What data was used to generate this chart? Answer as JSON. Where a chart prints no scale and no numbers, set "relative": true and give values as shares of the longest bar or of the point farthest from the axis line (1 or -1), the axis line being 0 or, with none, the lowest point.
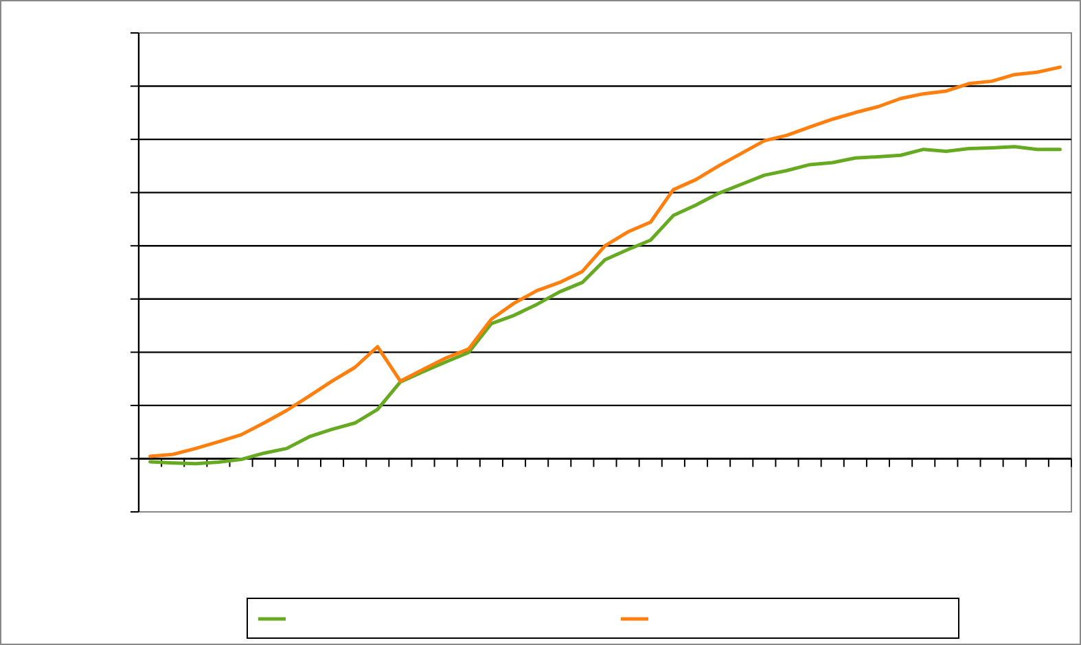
{
  "chart_data": {
    "type": "line",
    "relative": true,
    "grid": "y",
    "marker": "none",
    "categories": [
      null,
      null,
      null,
      null,
      null,
      null,
      null,
      null,
      null,
      null,
      null,
      null,
      null,
      null,
      null,
      null,
      null,
      null,
      null,
      null,
      null,
      null,
      null,
      null,
      null,
      null,
      null,
      null,
      null,
      null,
      null,
      null,
      null,
      null,
      null,
      null,
      null,
      null,
      null,
      null,
      null
    ],
    "series": [
      {
        "color": "#66aa22",
        "values": [
          -0.008,
          -0.011,
          -0.013,
          -0.009,
          -0.002,
          0.014,
          0.026,
          0.056,
          0.075,
          0.091,
          0.126,
          0.196,
          0.222,
          0.247,
          0.271,
          0.345,
          0.366,
          0.394,
          0.426,
          0.45,
          0.508,
          0.534,
          0.558,
          0.621,
          0.648,
          0.678,
          0.701,
          0.724,
          0.736,
          0.751,
          0.756,
          0.768,
          0.771,
          0.775,
          0.79,
          0.785,
          0.792,
          0.794,
          0.797,
          0.79,
          0.79
        ]
      },
      {
        "color": "#ff7f0e",
        "values": [
          0.006,
          0.011,
          0.026,
          0.043,
          0.061,
          0.091,
          0.123,
          0.16,
          0.198,
          0.233,
          0.286,
          0.198,
          0.228,
          0.257,
          0.28,
          0.356,
          0.397,
          0.429,
          0.45,
          0.478,
          0.544,
          0.579,
          0.604,
          0.687,
          0.713,
          0.748,
          0.78,
          0.812,
          0.826,
          0.847,
          0.867,
          0.884,
          0.899,
          0.92,
          0.932,
          0.939,
          0.958,
          0.964,
          0.981,
          0.987,
          1
        ]
      }
    ]
  }
}
